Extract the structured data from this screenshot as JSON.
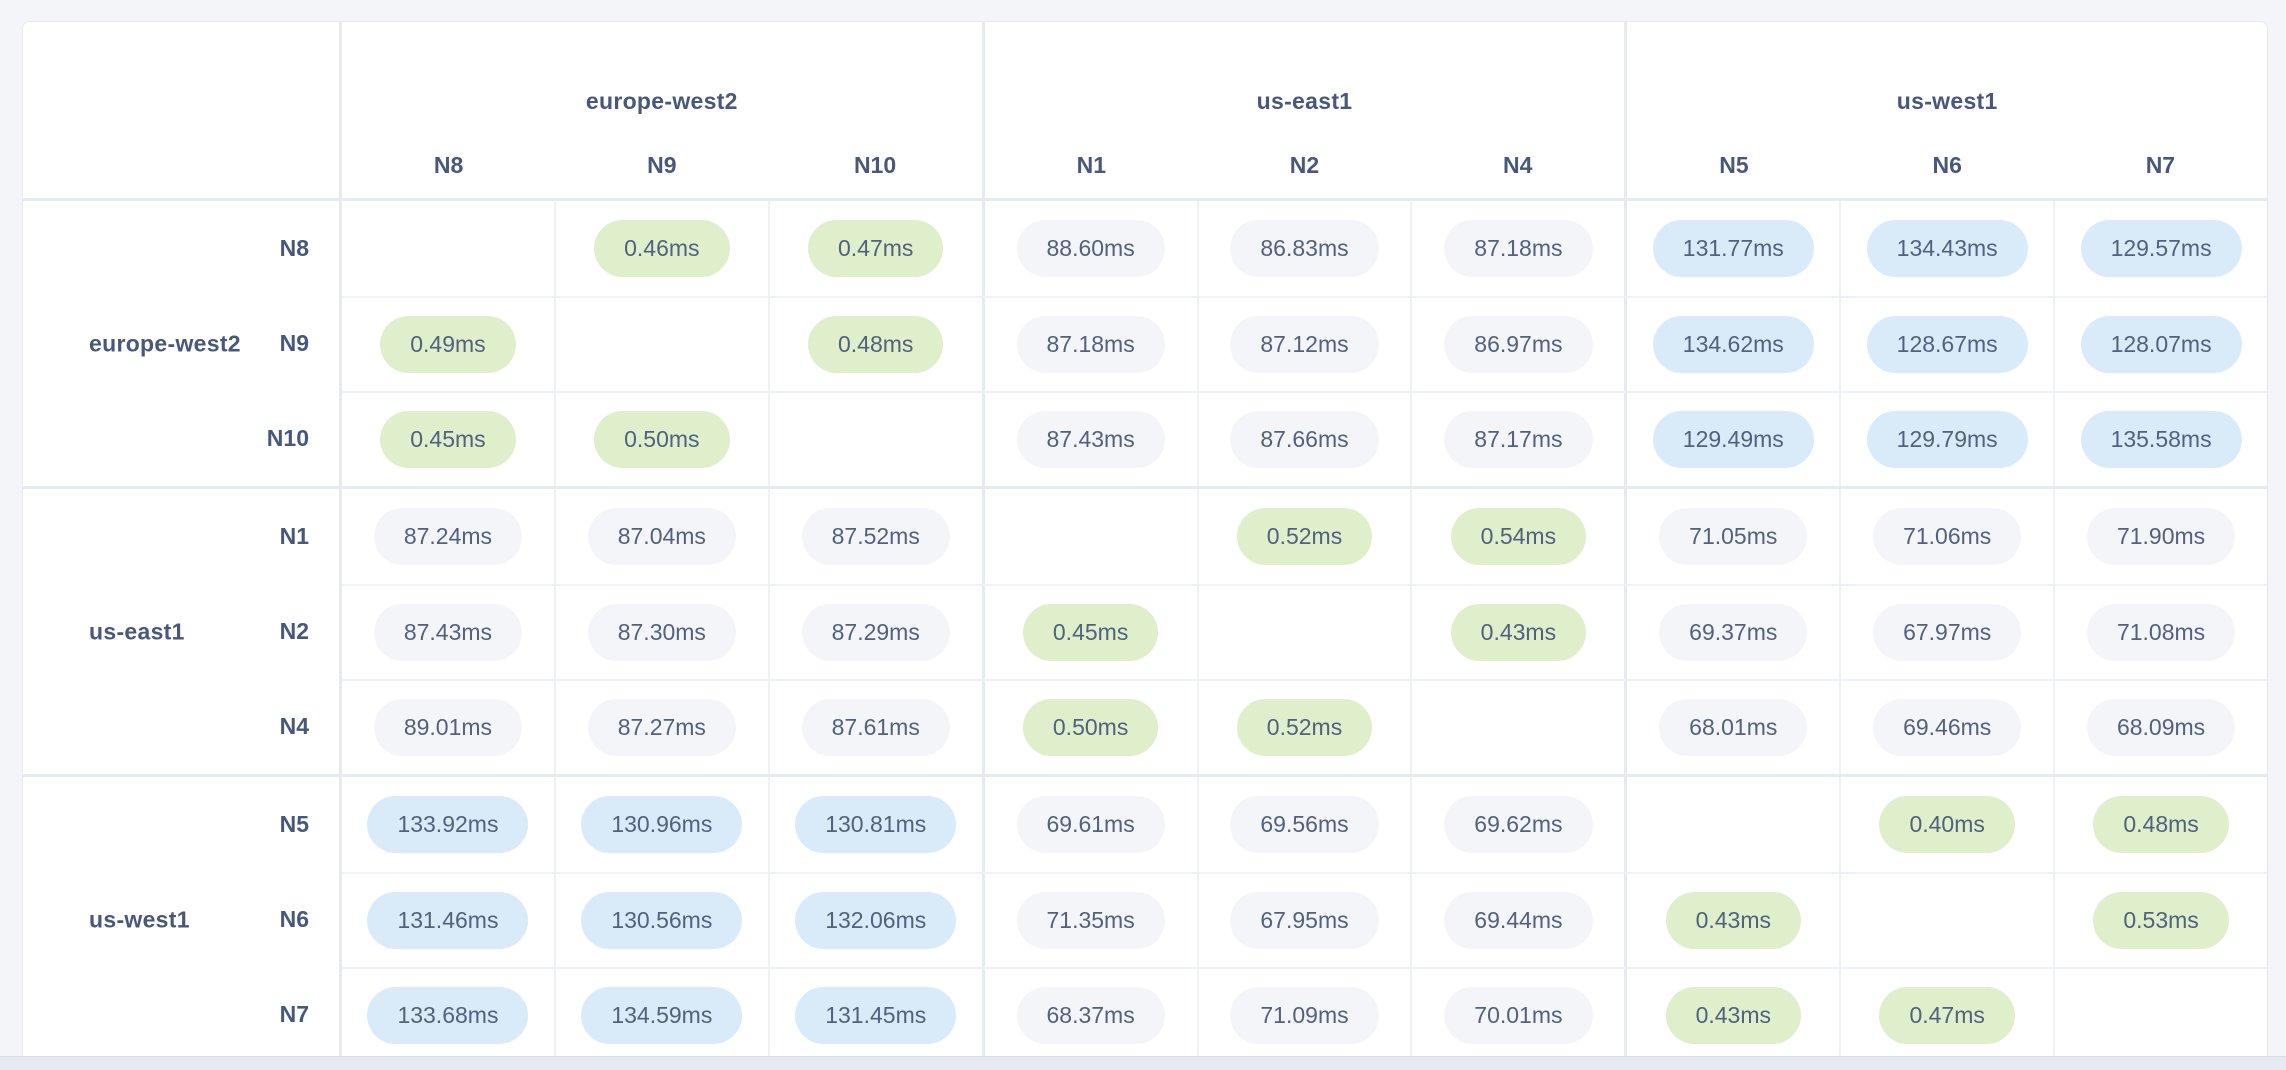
{
  "colors": {
    "page_bg": "#f3f5f9",
    "panel_bg": "#ffffff",
    "grid_major": "#e7ebf1",
    "grid_minor": "#eef1f6",
    "pill_gray": "#f3f5f9",
    "pill_green": "#dfeecb",
    "pill_blue": "#d9ebf9",
    "text_label": "#47587a",
    "text_value": "#52617e",
    "bottom_bar": "#e8eaf1"
  },
  "table": {
    "unit": "ms",
    "column_groups": [
      {
        "label": "europe-west2",
        "nodes": [
          "N8",
          "N9",
          "N10"
        ]
      },
      {
        "label": "us-east1",
        "nodes": [
          "N1",
          "N2",
          "N4"
        ]
      },
      {
        "label": "us-west1",
        "nodes": [
          "N5",
          "N6",
          "N7"
        ]
      }
    ],
    "row_groups": [
      {
        "label": "europe-west2",
        "rows": [
          {
            "node": "N8",
            "cells": [
              null,
              {
                "v": "0.46ms",
                "c": "green"
              },
              {
                "v": "0.47ms",
                "c": "green"
              },
              {
                "v": "88.60ms",
                "c": "gray"
              },
              {
                "v": "86.83ms",
                "c": "gray"
              },
              {
                "v": "87.18ms",
                "c": "gray"
              },
              {
                "v": "131.77ms",
                "c": "blue"
              },
              {
                "v": "134.43ms",
                "c": "blue"
              },
              {
                "v": "129.57ms",
                "c": "blue"
              }
            ]
          },
          {
            "node": "N9",
            "cells": [
              {
                "v": "0.49ms",
                "c": "green"
              },
              null,
              {
                "v": "0.48ms",
                "c": "green"
              },
              {
                "v": "87.18ms",
                "c": "gray"
              },
              {
                "v": "87.12ms",
                "c": "gray"
              },
              {
                "v": "86.97ms",
                "c": "gray"
              },
              {
                "v": "134.62ms",
                "c": "blue"
              },
              {
                "v": "128.67ms",
                "c": "blue"
              },
              {
                "v": "128.07ms",
                "c": "blue"
              }
            ]
          },
          {
            "node": "N10",
            "cells": [
              {
                "v": "0.45ms",
                "c": "green"
              },
              {
                "v": "0.50ms",
                "c": "green"
              },
              null,
              {
                "v": "87.43ms",
                "c": "gray"
              },
              {
                "v": "87.66ms",
                "c": "gray"
              },
              {
                "v": "87.17ms",
                "c": "gray"
              },
              {
                "v": "129.49ms",
                "c": "blue"
              },
              {
                "v": "129.79ms",
                "c": "blue"
              },
              {
                "v": "135.58ms",
                "c": "blue"
              }
            ]
          }
        ]
      },
      {
        "label": "us-east1",
        "rows": [
          {
            "node": "N1",
            "cells": [
              {
                "v": "87.24ms",
                "c": "gray"
              },
              {
                "v": "87.04ms",
                "c": "gray"
              },
              {
                "v": "87.52ms",
                "c": "gray"
              },
              null,
              {
                "v": "0.52ms",
                "c": "green"
              },
              {
                "v": "0.54ms",
                "c": "green"
              },
              {
                "v": "71.05ms",
                "c": "gray"
              },
              {
                "v": "71.06ms",
                "c": "gray"
              },
              {
                "v": "71.90ms",
                "c": "gray"
              }
            ]
          },
          {
            "node": "N2",
            "cells": [
              {
                "v": "87.43ms",
                "c": "gray"
              },
              {
                "v": "87.30ms",
                "c": "gray"
              },
              {
                "v": "87.29ms",
                "c": "gray"
              },
              {
                "v": "0.45ms",
                "c": "green"
              },
              null,
              {
                "v": "0.43ms",
                "c": "green"
              },
              {
                "v": "69.37ms",
                "c": "gray"
              },
              {
                "v": "67.97ms",
                "c": "gray"
              },
              {
                "v": "71.08ms",
                "c": "gray"
              }
            ]
          },
          {
            "node": "N4",
            "cells": [
              {
                "v": "89.01ms",
                "c": "gray"
              },
              {
                "v": "87.27ms",
                "c": "gray"
              },
              {
                "v": "87.61ms",
                "c": "gray"
              },
              {
                "v": "0.50ms",
                "c": "green"
              },
              {
                "v": "0.52ms",
                "c": "green"
              },
              null,
              {
                "v": "68.01ms",
                "c": "gray"
              },
              {
                "v": "69.46ms",
                "c": "gray"
              },
              {
                "v": "68.09ms",
                "c": "gray"
              }
            ]
          }
        ]
      },
      {
        "label": "us-west1",
        "rows": [
          {
            "node": "N5",
            "cells": [
              {
                "v": "133.92ms",
                "c": "blue"
              },
              {
                "v": "130.96ms",
                "c": "blue"
              },
              {
                "v": "130.81ms",
                "c": "blue"
              },
              {
                "v": "69.61ms",
                "c": "gray"
              },
              {
                "v": "69.56ms",
                "c": "gray"
              },
              {
                "v": "69.62ms",
                "c": "gray"
              },
              null,
              {
                "v": "0.40ms",
                "c": "green"
              },
              {
                "v": "0.48ms",
                "c": "green"
              }
            ]
          },
          {
            "node": "N6",
            "cells": [
              {
                "v": "131.46ms",
                "c": "blue"
              },
              {
                "v": "130.56ms",
                "c": "blue"
              },
              {
                "v": "132.06ms",
                "c": "blue"
              },
              {
                "v": "71.35ms",
                "c": "gray"
              },
              {
                "v": "67.95ms",
                "c": "gray"
              },
              {
                "v": "69.44ms",
                "c": "gray"
              },
              {
                "v": "0.43ms",
                "c": "green"
              },
              null,
              {
                "v": "0.53ms",
                "c": "green"
              }
            ]
          },
          {
            "node": "N7",
            "cells": [
              {
                "v": "133.68ms",
                "c": "blue"
              },
              {
                "v": "134.59ms",
                "c": "blue"
              },
              {
                "v": "131.45ms",
                "c": "blue"
              },
              {
                "v": "68.37ms",
                "c": "gray"
              },
              {
                "v": "71.09ms",
                "c": "gray"
              },
              {
                "v": "70.01ms",
                "c": "gray"
              },
              {
                "v": "0.43ms",
                "c": "green"
              },
              {
                "v": "0.47ms",
                "c": "green"
              },
              null
            ]
          }
        ]
      }
    ]
  }
}
